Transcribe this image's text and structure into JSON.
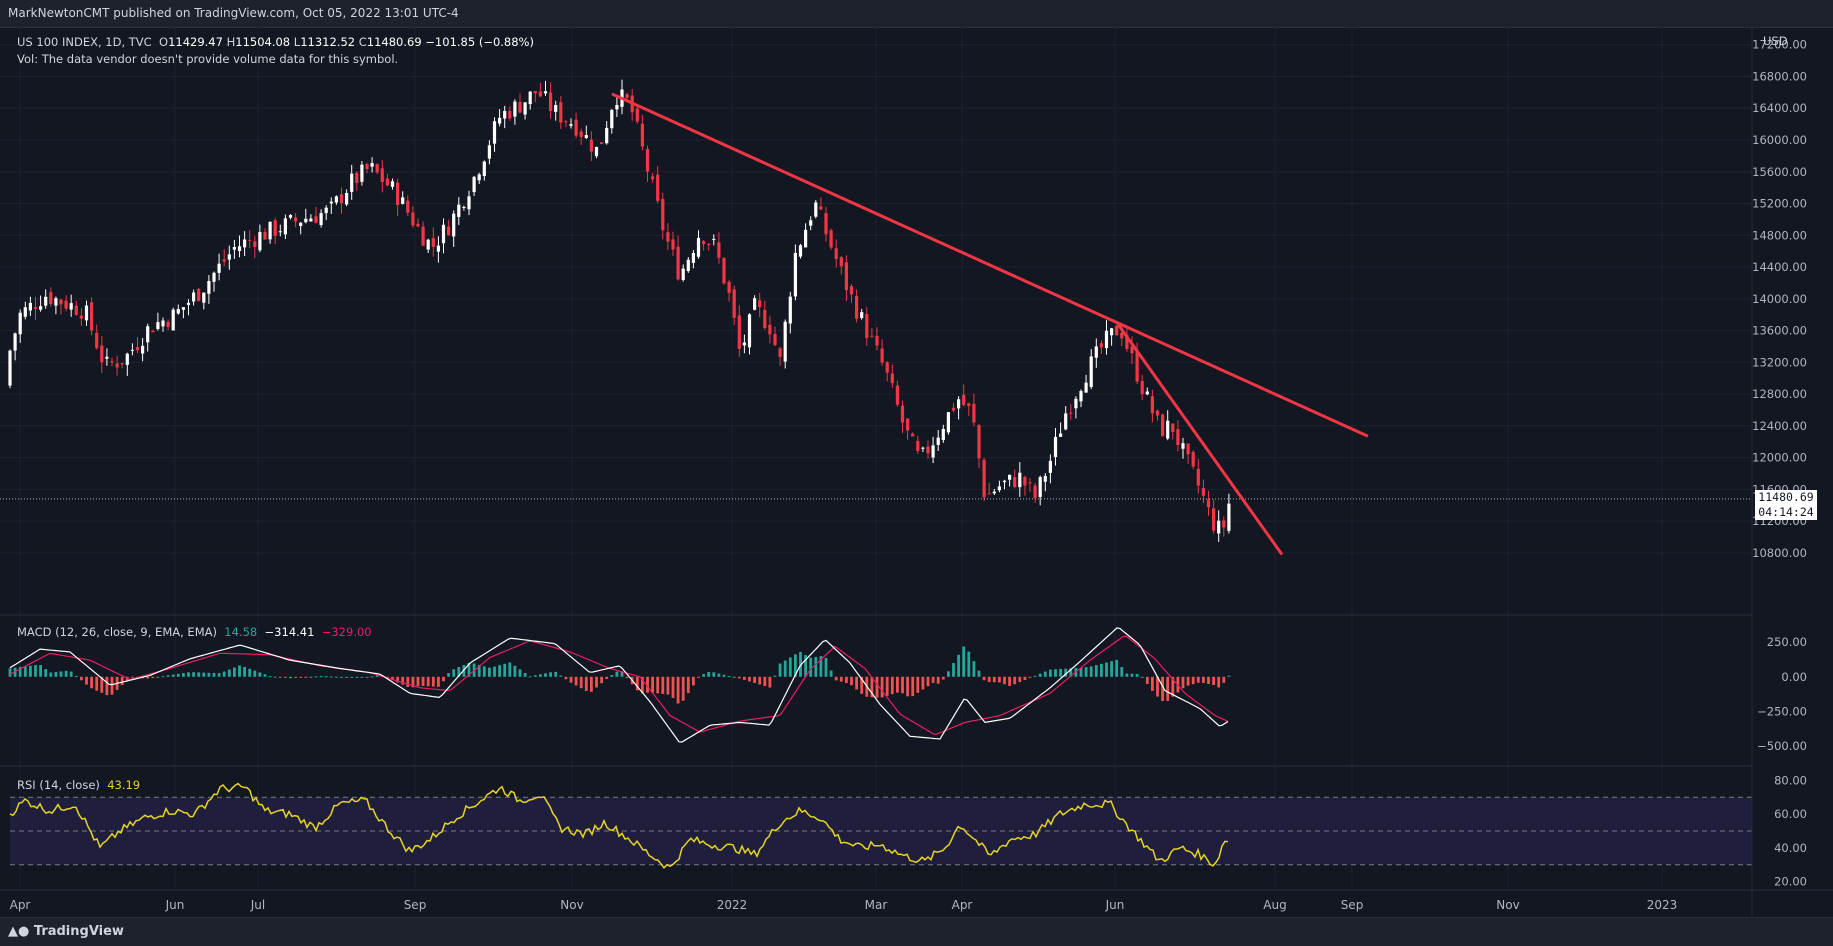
{
  "header": {
    "publisher": "MarkNewtonCMT published on TradingView.com, Oct 05, 2022 13:01 UTC-4"
  },
  "legend": {
    "symbol": "US 100 INDEX, 1D, TVC",
    "open_label": "O",
    "open": "11429.47",
    "high_label": "H",
    "high": "11504.08",
    "low_label": "L",
    "low": "11312.52",
    "close_label": "C",
    "close": "11480.69",
    "change": "−101.85 (−0.88%)",
    "vol_note": "Vol: The data vendor doesn't provide volume data for this symbol."
  },
  "macd_legend": {
    "label": "MACD (12, 26, close, 9, EMA, EMA)",
    "hist": "14.58",
    "macd": "−314.41",
    "signal": "−329.00"
  },
  "rsi_legend": {
    "label": "RSI (14, close)",
    "value": "43.19"
  },
  "price_axis": {
    "currency": "USD",
    "last_price": "11480.69",
    "countdown": "04:14:24"
  },
  "footer": {
    "brand": "TradingView"
  },
  "colors": {
    "background": "#131722",
    "up": "#ffffff",
    "down": "#f23645",
    "trendline": "#f23645",
    "macd_line": "#ffffff",
    "signal_line": "#e91e63",
    "hist_up": "#26a69a",
    "hist_down": "#ef5350",
    "rsi_line": "#e6d423",
    "rsi_band": "#1f1f3d"
  },
  "chart_data": [
    {
      "type": "candlestick",
      "title": "US 100 INDEX, 1D, TVC",
      "x_tick_labels": [
        "Apr",
        "Jun",
        "Jul",
        "Sep",
        "Nov",
        "2022",
        "Mar",
        "Apr",
        "Jun",
        "Aug",
        "Sep",
        "Nov",
        "2023"
      ],
      "y_tick_labels": [
        "17200.00",
        "16800.00",
        "16400.00",
        "16000.00",
        "15600.00",
        "15200.00",
        "14800.00",
        "14400.00",
        "14000.00",
        "13600.00",
        "13200.00",
        "12800.00",
        "12400.00",
        "12000.00",
        "11600.00",
        "11200.00",
        "10800.00"
      ],
      "ylim": [
        10560,
        17360
      ],
      "price_path": [
        [
          0,
          12900
        ],
        [
          20,
          13800
        ],
        [
          45,
          14050
        ],
        [
          85,
          13850
        ],
        [
          105,
          13150
        ],
        [
          125,
          13250
        ],
        [
          150,
          13650
        ],
        [
          175,
          13800
        ],
        [
          200,
          14100
        ],
        [
          235,
          14650
        ],
        [
          260,
          14800
        ],
        [
          300,
          15000
        ],
        [
          330,
          15100
        ],
        [
          350,
          15450
        ],
        [
          370,
          15650
        ],
        [
          395,
          15350
        ],
        [
          420,
          14850
        ],
        [
          432,
          14650
        ],
        [
          450,
          14950
        ],
        [
          475,
          15550
        ],
        [
          500,
          16300
        ],
        [
          520,
          16450
        ],
        [
          537,
          16620
        ],
        [
          555,
          16350
        ],
        [
          575,
          16200
        ],
        [
          598,
          15850
        ],
        [
          615,
          16580
        ],
        [
          630,
          16450
        ],
        [
          645,
          15750
        ],
        [
          665,
          14800
        ],
        [
          680,
          14300
        ],
        [
          700,
          14850
        ],
        [
          715,
          14650
        ],
        [
          730,
          14000
        ],
        [
          740,
          13300
        ],
        [
          755,
          13900
        ],
        [
          770,
          13650
        ],
        [
          780,
          13200
        ],
        [
          795,
          14550
        ],
        [
          815,
          15200
        ],
        [
          830,
          14700
        ],
        [
          850,
          14050
        ],
        [
          865,
          13650
        ],
        [
          885,
          13100
        ],
        [
          905,
          12350
        ],
        [
          920,
          11950
        ],
        [
          935,
          12250
        ],
        [
          958,
          12750
        ],
        [
          972,
          12550
        ],
        [
          985,
          11500
        ],
        [
          1000,
          11650
        ],
        [
          1020,
          11750
        ],
        [
          1035,
          11500
        ],
        [
          1050,
          11950
        ],
        [
          1065,
          12550
        ],
        [
          1085,
          13050
        ],
        [
          1105,
          13450
        ],
        [
          1120,
          13650
        ],
        [
          1130,
          13300
        ],
        [
          1145,
          12800
        ],
        [
          1160,
          12350
        ],
        [
          1172,
          12400
        ],
        [
          1185,
          12000
        ],
        [
          1200,
          11600
        ],
        [
          1212,
          11200
        ],
        [
          1222,
          11050
        ],
        [
          1230,
          11480
        ]
      ],
      "trendlines": [
        {
          "from": [
            612,
            16580
          ],
          "to": [
            1368,
            12270
          ]
        },
        {
          "from": [
            1118,
            13680
          ],
          "to": [
            1282,
            10780
          ]
        }
      ],
      "last_price": 11480.69
    },
    {
      "type": "line",
      "title": "MACD (12, 26, close, 9, EMA, EMA)",
      "y_tick_labels": [
        "250.00",
        "0.00",
        "−250.00",
        "−500.00"
      ],
      "ylim": [
        -580,
        360
      ],
      "macd_path": [
        [
          0,
          20
        ],
        [
          40,
          200
        ],
        [
          70,
          180
        ],
        [
          110,
          -60
        ],
        [
          150,
          10
        ],
        [
          190,
          130
        ],
        [
          240,
          230
        ],
        [
          290,
          120
        ],
        [
          340,
          60
        ],
        [
          380,
          20
        ],
        [
          410,
          -120
        ],
        [
          440,
          -150
        ],
        [
          470,
          100
        ],
        [
          510,
          280
        ],
        [
          555,
          240
        ],
        [
          590,
          30
        ],
        [
          620,
          80
        ],
        [
          650,
          -180
        ],
        [
          680,
          -480
        ],
        [
          710,
          -350
        ],
        [
          740,
          -330
        ],
        [
          770,
          -350
        ],
        [
          800,
          80
        ],
        [
          825,
          270
        ],
        [
          850,
          100
        ],
        [
          880,
          -200
        ],
        [
          910,
          -430
        ],
        [
          940,
          -450
        ],
        [
          965,
          -150
        ],
        [
          985,
          -330
        ],
        [
          1010,
          -300
        ],
        [
          1050,
          -80
        ],
        [
          1080,
          110
        ],
        [
          1118,
          360
        ],
        [
          1140,
          230
        ],
        [
          1165,
          -100
        ],
        [
          1200,
          -230
        ],
        [
          1220,
          -360
        ],
        [
          1230,
          -314
        ]
      ],
      "signal_path": [
        [
          0,
          -20
        ],
        [
          50,
          170
        ],
        [
          90,
          120
        ],
        [
          130,
          -20
        ],
        [
          170,
          60
        ],
        [
          220,
          170
        ],
        [
          270,
          160
        ],
        [
          320,
          80
        ],
        [
          370,
          30
        ],
        [
          420,
          -80
        ],
        [
          450,
          -100
        ],
        [
          490,
          140
        ],
        [
          530,
          260
        ],
        [
          570,
          180
        ],
        [
          610,
          60
        ],
        [
          640,
          0
        ],
        [
          670,
          -280
        ],
        [
          700,
          -400
        ],
        [
          740,
          -320
        ],
        [
          780,
          -280
        ],
        [
          810,
          50
        ],
        [
          835,
          220
        ],
        [
          865,
          60
        ],
        [
          900,
          -270
        ],
        [
          935,
          -420
        ],
        [
          965,
          -330
        ],
        [
          1000,
          -280
        ],
        [
          1050,
          -120
        ],
        [
          1090,
          120
        ],
        [
          1125,
          300
        ],
        [
          1155,
          130
        ],
        [
          1185,
          -120
        ],
        [
          1215,
          -280
        ],
        [
          1230,
          -329
        ]
      ],
      "hist_last": 14.58
    },
    {
      "type": "line",
      "title": "RSI (14, close)",
      "y_tick_labels": [
        "80.00",
        "60.00",
        "40.00",
        "20.00"
      ],
      "ylim": [
        18,
        82
      ],
      "bands": [
        70,
        50,
        30
      ],
      "rsi_path": [
        [
          0,
          55
        ],
        [
          25,
          68
        ],
        [
          50,
          62
        ],
        [
          75,
          66
        ],
        [
          100,
          40
        ],
        [
          120,
          50
        ],
        [
          145,
          58
        ],
        [
          170,
          62
        ],
        [
          195,
          60
        ],
        [
          220,
          75
        ],
        [
          245,
          76
        ],
        [
          265,
          62
        ],
        [
          290,
          60
        ],
        [
          315,
          52
        ],
        [
          340,
          66
        ],
        [
          365,
          68
        ],
        [
          390,
          50
        ],
        [
          410,
          38
        ],
        [
          430,
          45
        ],
        [
          455,
          58
        ],
        [
          480,
          68
        ],
        [
          500,
          76
        ],
        [
          520,
          68
        ],
        [
          540,
          72
        ],
        [
          560,
          52
        ],
        [
          585,
          48
        ],
        [
          605,
          55
        ],
        [
          630,
          45
        ],
        [
          650,
          36
        ],
        [
          670,
          28
        ],
        [
          690,
          45
        ],
        [
          710,
          42
        ],
        [
          735,
          40
        ],
        [
          755,
          36
        ],
        [
          780,
          55
        ],
        [
          800,
          62
        ],
        [
          820,
          58
        ],
        [
          840,
          45
        ],
        [
          860,
          40
        ],
        [
          880,
          42
        ],
        [
          905,
          35
        ],
        [
          925,
          32
        ],
        [
          945,
          40
        ],
        [
          960,
          54
        ],
        [
          975,
          45
        ],
        [
          990,
          35
        ],
        [
          1010,
          45
        ],
        [
          1035,
          48
        ],
        [
          1060,
          60
        ],
        [
          1085,
          66
        ],
        [
          1110,
          66
        ],
        [
          1125,
          55
        ],
        [
          1140,
          45
        ],
        [
          1160,
          32
        ],
        [
          1180,
          40
        ],
        [
          1200,
          36
        ],
        [
          1215,
          30
        ],
        [
          1225,
          45
        ],
        [
          1230,
          43.19
        ]
      ],
      "last_value": 43.19
    }
  ]
}
